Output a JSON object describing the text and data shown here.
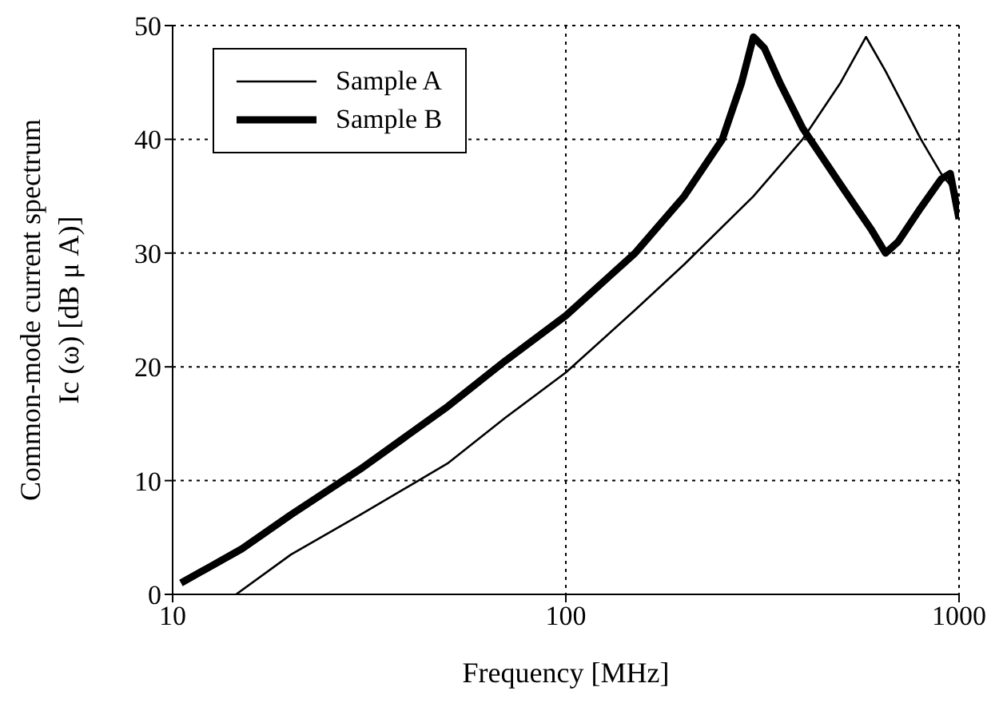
{
  "chart_data": {
    "type": "line",
    "xlabel": "Frequency      [MHz]",
    "ylabel": [
      "Common-mode current spectrum",
      "Ic (ω)      [dB μ A)]"
    ],
    "series": [
      {
        "name": "Sample A",
        "color": "#000000",
        "x": [
          14.5,
          20,
          30,
          50,
          70,
          100,
          150,
          200,
          300,
          400,
          500,
          580,
          650,
          800,
          900,
          1000
        ],
        "values": [
          0,
          3.5,
          7,
          11.5,
          15.5,
          19.5,
          25,
          29,
          35,
          40,
          45,
          49,
          46,
          40,
          37,
          35
        ]
      },
      {
        "name": "Sample B",
        "color": "#000000",
        "x": [
          10.5,
          15,
          20,
          30,
          50,
          70,
          100,
          150,
          200,
          250,
          280,
          300,
          320,
          350,
          400,
          500,
          600,
          650,
          700,
          800,
          900,
          950,
          1000
        ],
        "values": [
          1,
          4,
          7,
          11,
          16.5,
          20.5,
          24.5,
          30,
          35,
          40,
          45,
          49,
          48,
          45,
          41,
          36,
          32,
          30,
          31,
          34,
          36.5,
          37,
          33
        ]
      }
    ],
    "log": "x",
    "xlim": [
      10,
      1000
    ],
    "xticks": [
      10,
      100,
      1000
    ],
    "ylim": [
      0,
      50
    ],
    "yticks": [
      0,
      10,
      20,
      30,
      40,
      50
    ],
    "grid": true,
    "legend": "top left",
    "marker": "none",
    "line_style": "solid"
  }
}
